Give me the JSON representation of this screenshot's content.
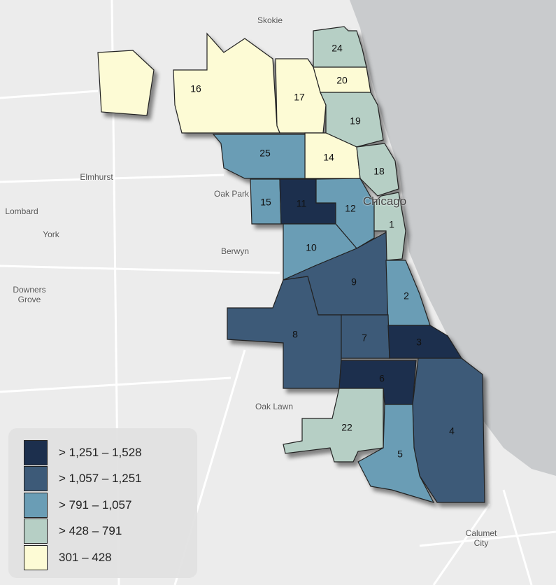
{
  "places": [
    {
      "label": "Skokie"
    },
    {
      "label": "Elmhurst"
    },
    {
      "label": "Oak Park"
    },
    {
      "label": "Lombard"
    },
    {
      "label": "York"
    },
    {
      "label": "Berwyn"
    },
    {
      "label": "Downers Grove"
    },
    {
      "label": "Oak Lawn"
    },
    {
      "label": "Calumet City"
    },
    {
      "label": "Chicago"
    }
  ],
  "districts": [
    {
      "label": "24",
      "color": "#b6cfc5"
    },
    {
      "label": "20",
      "color": "#fdfbd5"
    },
    {
      "label": "17",
      "color": "#fdfbd5"
    },
    {
      "label": "16",
      "color": "#fdfbd5"
    },
    {
      "label": "19",
      "color": "#b6cfc5"
    },
    {
      "label": "14",
      "color": "#fdfbd5"
    },
    {
      "label": "18",
      "color": "#b6cfc5"
    },
    {
      "label": "25",
      "color": "#6a9db5"
    },
    {
      "label": "15",
      "color": "#6a9db5"
    },
    {
      "label": "11",
      "color": "#1c2f4d"
    },
    {
      "label": "12",
      "color": "#6a9db5"
    },
    {
      "label": "1",
      "color": "#b6cfc5"
    },
    {
      "label": "10",
      "color": "#6a9db5"
    },
    {
      "label": "9",
      "color": "#3d5a78"
    },
    {
      "label": "2",
      "color": "#6a9db5"
    },
    {
      "label": "8",
      "color": "#3d5a78"
    },
    {
      "label": "7",
      "color": "#3d5a78"
    },
    {
      "label": "3",
      "color": "#1c2f4d"
    },
    {
      "label": "6",
      "color": "#1c2f4d"
    },
    {
      "label": "4",
      "color": "#3d5a78"
    },
    {
      "label": "5",
      "color": "#6a9db5"
    },
    {
      "label": "22",
      "color": "#b6cfc5"
    }
  ],
  "legend": [
    {
      "label": "> 1,251 – 1,528",
      "color": "#1c2f4d"
    },
    {
      "label": "> 1,057 – 1,251",
      "color": "#3d5a78"
    },
    {
      "label": "> 791 – 1,057",
      "color": "#6a9db5"
    },
    {
      "label": "> 428 – 791",
      "color": "#b6cfc5"
    },
    {
      "label": "301 – 428",
      "color": "#fdfbd5"
    }
  ]
}
